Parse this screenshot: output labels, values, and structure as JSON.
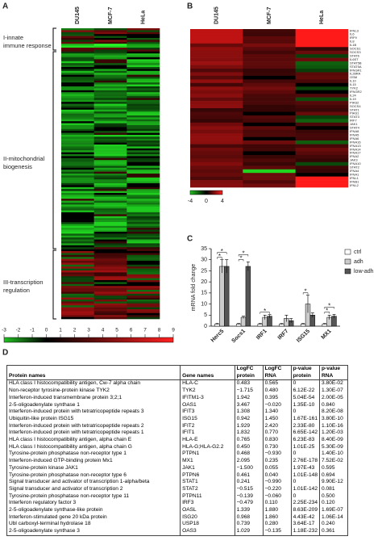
{
  "panels": {
    "A": {
      "label": "A",
      "columns": [
        "DU145",
        "MCF-7",
        "HeLa"
      ],
      "groups": [
        "I-innate immune response",
        "II-mitochondrial biogenesis",
        "III-transcription regulation"
      ],
      "scale_ticks": [
        -3,
        -2,
        -1,
        0,
        1,
        2,
        3,
        4,
        5,
        6,
        7,
        8,
        9
      ]
    },
    "B": {
      "label": "B",
      "columns": [
        "DU145",
        "MCF-7",
        "HeLa"
      ],
      "genes": [
        "IFNL3",
        "IL6",
        "IRF9",
        "IL8",
        "IL1B",
        "SOCS1",
        "SOCS3",
        "STAT6",
        "IL6ST",
        "STAT5B",
        "STAT5A",
        "IFNGR1",
        "IL28RA",
        "OSM",
        "IL10",
        "IL15",
        "TYK2",
        "IFNGR2",
        "IL24",
        "IL19",
        "PIAS2",
        "SOCS4",
        "STAT1",
        "PIAS1",
        "STAT3",
        "IRF7",
        "JAK1",
        "STAT4",
        "IFNA8",
        "IFNA5",
        "IFNA6",
        "IFNA16",
        "IFNA13",
        "IFNA14",
        "IFNA17",
        "IFNA2",
        "JAK3",
        "IFNA10",
        "STAT2",
        "IFNA4",
        "IFNA1",
        "IFNL1",
        "IFNB1",
        "IFNL2"
      ],
      "scale_ticks": [
        -4,
        0,
        4
      ]
    },
    "C": {
      "label": "C",
      "chart_data": {
        "type": "bar",
        "y_label": "mRNA fold change",
        "categories": [
          "Herc5",
          "Socs1",
          "IRF1",
          "IRF7",
          "ISG15",
          "MX1"
        ],
        "series": [
          {
            "name": "ctrl",
            "color": "#ffffff",
            "values": [
              1,
              1,
              1,
              1,
              1,
              1
            ],
            "errors": [
              0.2,
              0.2,
              0.2,
              0.2,
              0.2,
              0.2
            ]
          },
          {
            "name": "adh",
            "color": "#cccccc",
            "values": [
              27,
              4,
              4,
              3.5,
              10,
              4
            ],
            "errors": [
              3,
              0.5,
              1,
              1.5,
              4,
              1
            ]
          },
          {
            "name": "low-adh",
            "color": "#555555",
            "values": [
              27,
              27,
              4.5,
              2.5,
              5,
              4.5
            ],
            "errors": [
              3,
              2,
              0.7,
              1,
              1,
              0.8
            ]
          }
        ],
        "ylim": [
          0,
          35
        ],
        "yticks": [
          0,
          5,
          10,
          15,
          20,
          25,
          30,
          35
        ],
        "legend": "top-right",
        "annotations": [
          {
            "text": "*",
            "category": "Herc5",
            "from": "ctrl",
            "to": "adh"
          },
          {
            "text": "*",
            "category": "Herc5",
            "from": "ctrl",
            "to": "low-adh"
          },
          {
            "text": "*",
            "category": "Socs1",
            "from": "ctrl",
            "to": "adh"
          },
          {
            "text": "*",
            "category": "Socs1",
            "from": "ctrl",
            "to": "low-adh"
          },
          {
            "text": "*",
            "category": "IRF1",
            "from": "ctrl",
            "to": "low-adh"
          },
          {
            "text": "*",
            "category": "ISG15",
            "from": "ctrl",
            "to": "adh"
          },
          {
            "text": "*",
            "category": "MX1",
            "from": "ctrl",
            "to": "adh"
          },
          {
            "text": "*",
            "category": "MX1",
            "from": "ctrl",
            "to": "low-adh"
          }
        ]
      }
    },
    "D": {
      "label": "D",
      "table": {
        "header": [
          "Protein names",
          "Gene names",
          "LogFC protein",
          "LogFC RNA",
          "p-value protein",
          "p-value RNA"
        ],
        "rows": [
          [
            "HLA class I histocompatibility antigen, Cw-7 alpha chain",
            "HLA-C",
            "0.483",
            "0.565",
            "0",
            "3.80E-02"
          ],
          [
            "Non-receptor tyrosine-protein kinase TYK2",
            "TYK2",
            "−1.715",
            "0.480",
            "6.12E-22",
            "1.30E-07"
          ],
          [
            "Interferon-induced transmembrane protein 3;2;1",
            "IFITM1-3",
            "1.942",
            "0.395",
            "5.04E-54",
            "2.00E-05"
          ],
          [
            "2-5-oligoadenylate synthase 1",
            "OAS1",
            "3.467",
            "−0.020",
            "1.35E-10",
            "0.840"
          ],
          [
            "Interferon-induced protein with tetratricopeptide repeats 3",
            "IFIT3",
            "1.308",
            "1.340",
            "0",
            "8.20E-08"
          ],
          [
            "Ubiquitin-like protein ISG15",
            "ISG15",
            "0.942",
            "1.450",
            "1.67E-161",
            "3.80E-10"
          ],
          [
            "Interferon-induced protein with tetratricopeptide repeats 2",
            "IFIT2",
            "1.929",
            "2.420",
            "2.33E-80",
            "1.10E-16"
          ],
          [
            "Interferon-induced protein with tetratricopeptide repeats 1",
            "IFIT1",
            "1.832",
            "0.770",
            "6.65E-142",
            "1.20E-03"
          ],
          [
            "HLA class I histocompatibility antigen, alpha chain E",
            "HLA-E",
            "0.765",
            "0.830",
            "6.23E-83",
            "8.40E-09"
          ],
          [
            "HLA class I histocompatibility antigen, alpha chain G",
            "HLA-G;HLA-G2.2",
            "0.450",
            "0.730",
            "1.01E-25",
            "5.30E-09"
          ],
          [
            "Tyrosine-protein phosphatase non-receptor type 1",
            "PTPN1",
            "0.468",
            "−0.930",
            "0",
            "1.40E-10"
          ],
          [
            "Interferon-induced GTP-binding protein Mx1",
            "MX1",
            "2.095",
            "0.235",
            "2.76E-178",
            "7.52E-02"
          ],
          [
            "Tyrosine-protein kinase JAK1",
            "JAK1",
            "−1.500",
            "0.055",
            "1.97E-43",
            "0.595"
          ],
          [
            "Tyrosine-protein phosphatase non-receptor type 6",
            "PTPN6",
            "0.461",
            "0.040",
            "1.01E-148",
            "0.694"
          ],
          [
            "Signal transducer and activator of transcription 1-alpha/beta",
            "STAT1",
            "0.241",
            "−0.990",
            "0",
            "9.90E-12"
          ],
          [
            "Signal transducer and activator of transcription 2",
            "STAT2",
            "−0.515",
            "−0.220",
            "1.01E-142",
            "0.081"
          ],
          [
            "Tyrosine-protein phosphatase non-receptor type 11",
            "PTPN11",
            "−0.139",
            "−0.060",
            "0",
            "0.500"
          ],
          [
            "Interferon regulatory factor 3",
            "IRF3",
            "−0.479",
            "0.110",
            "2.25E-234",
            "0.120"
          ],
          [
            "2-5-oligoadenylate synthase-like protein",
            "OASL",
            "1.339",
            "1.880",
            "8.63E-209",
            "1.69E-07"
          ],
          [
            "Interferon-stimulated gene 20 kDa protein",
            "ISG20",
            "0.968",
            "1.860",
            "4.43E-42",
            "1.06E-14"
          ],
          [
            "Ubl carboxyl-terminal hydrolase 18",
            "USP18",
            "0.739",
            "0.280",
            "3.64E-17",
            "0.240"
          ],
          [
            "2-5-oligoadenylate synthase 3",
            "OAS3",
            "1.029",
            "−0.135",
            "1.18E-232",
            "0.361"
          ]
        ]
      }
    }
  }
}
